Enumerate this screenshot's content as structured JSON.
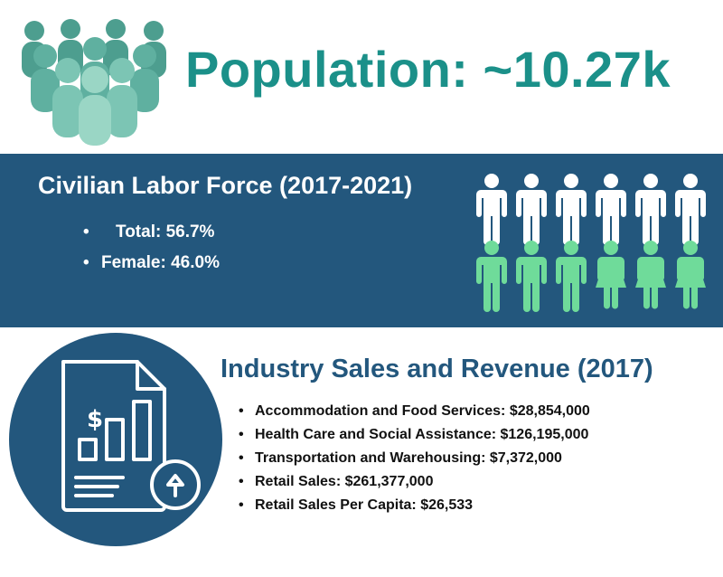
{
  "population": {
    "title": "Population:  ~10.27k",
    "icon": "people-group-icon",
    "colors": [
      "#4d9e8f",
      "#5fb0a0",
      "#7cc5b4",
      "#9ad6c5"
    ]
  },
  "labor_force": {
    "title": "Civilian Labor Force (2017-2021)",
    "items": [
      "Total: 56.7%",
      "Female: 46.0%"
    ],
    "band_color": "#23577d",
    "figure_icons": {
      "top_row": "male-figure-icon",
      "bottom_row": "female-figure-icon"
    },
    "figure_colors": {
      "top_row": "#ffffff",
      "bottom_row": "#6fdb9a"
    }
  },
  "industry": {
    "title": "Industry Sales and Revenue (2017)",
    "items": [
      "Accommodation and Food Services: $28,854,000",
      "Health Care and Social Assistance: $126,195,000",
      "Transportation and Warehousing: $7,372,000",
      "Retail Sales: $261,377,000",
      "Retail Sales Per Capita: $26,533"
    ],
    "icon": "financial-report-icon"
  },
  "colors": {
    "teal": "#1b9089",
    "navy": "#23577d"
  }
}
